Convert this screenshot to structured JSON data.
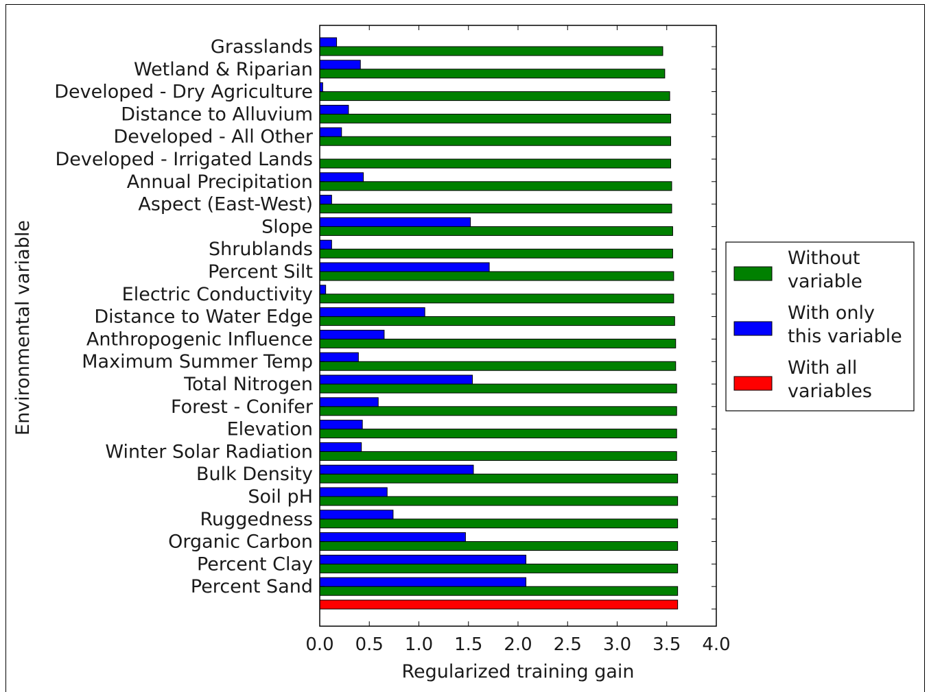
{
  "chart_data": {
    "type": "bar",
    "orientation": "horizontal",
    "xlabel": "Regularized training gain",
    "ylabel": "Environmental variable",
    "xlim": [
      0.0,
      4.0
    ],
    "xticks": [
      "0.0",
      "0.5",
      "1.0",
      "1.5",
      "2.0",
      "2.5",
      "3.0",
      "3.5",
      "4.0"
    ],
    "categories": [
      "Grasslands",
      "Wetland & Riparian",
      "Developed - Dry Agriculture",
      "Distance to Alluvium",
      "Developed - All Other",
      "Developed - Irrigated Lands",
      "Annual Precipitation",
      "Aspect (East-West)",
      "Slope",
      "Shrublands",
      "Percent Silt",
      "Electric Conductivity",
      "Distance to Water Edge",
      "Anthropogenic Influence",
      "Maximum Summer Temp",
      "Total Nitrogen",
      "Forest - Conifer",
      "Elevation",
      "Winter Solar Radiation",
      "Bulk Density",
      "Soil pH",
      "Ruggedness",
      "Organic Carbon",
      "Percent Clay",
      "Percent Sand"
    ],
    "series": [
      {
        "name": "Without variable",
        "color": "#008000",
        "values": [
          3.46,
          3.48,
          3.53,
          3.54,
          3.54,
          3.54,
          3.55,
          3.55,
          3.56,
          3.56,
          3.57,
          3.57,
          3.58,
          3.59,
          3.59,
          3.6,
          3.6,
          3.6,
          3.6,
          3.61,
          3.61,
          3.61,
          3.61,
          3.61,
          3.61
        ]
      },
      {
        "name": "With only this variable",
        "color": "#0000ff",
        "values": [
          0.17,
          0.41,
          0.03,
          0.29,
          0.22,
          0.0,
          0.44,
          0.12,
          1.52,
          0.12,
          1.71,
          0.06,
          1.06,
          0.65,
          0.39,
          1.54,
          0.59,
          0.43,
          0.42,
          1.55,
          0.68,
          0.74,
          1.47,
          2.08,
          2.08
        ]
      }
    ],
    "all_variables": {
      "name": "With all variables",
      "color": "#ff0000",
      "value": 3.61
    },
    "legend_labels": [
      [
        "Without",
        "variable"
      ],
      [
        "With only",
        "this variable"
      ],
      [
        "With all",
        "variables"
      ]
    ],
    "legend_position": "right",
    "grid": false
  }
}
